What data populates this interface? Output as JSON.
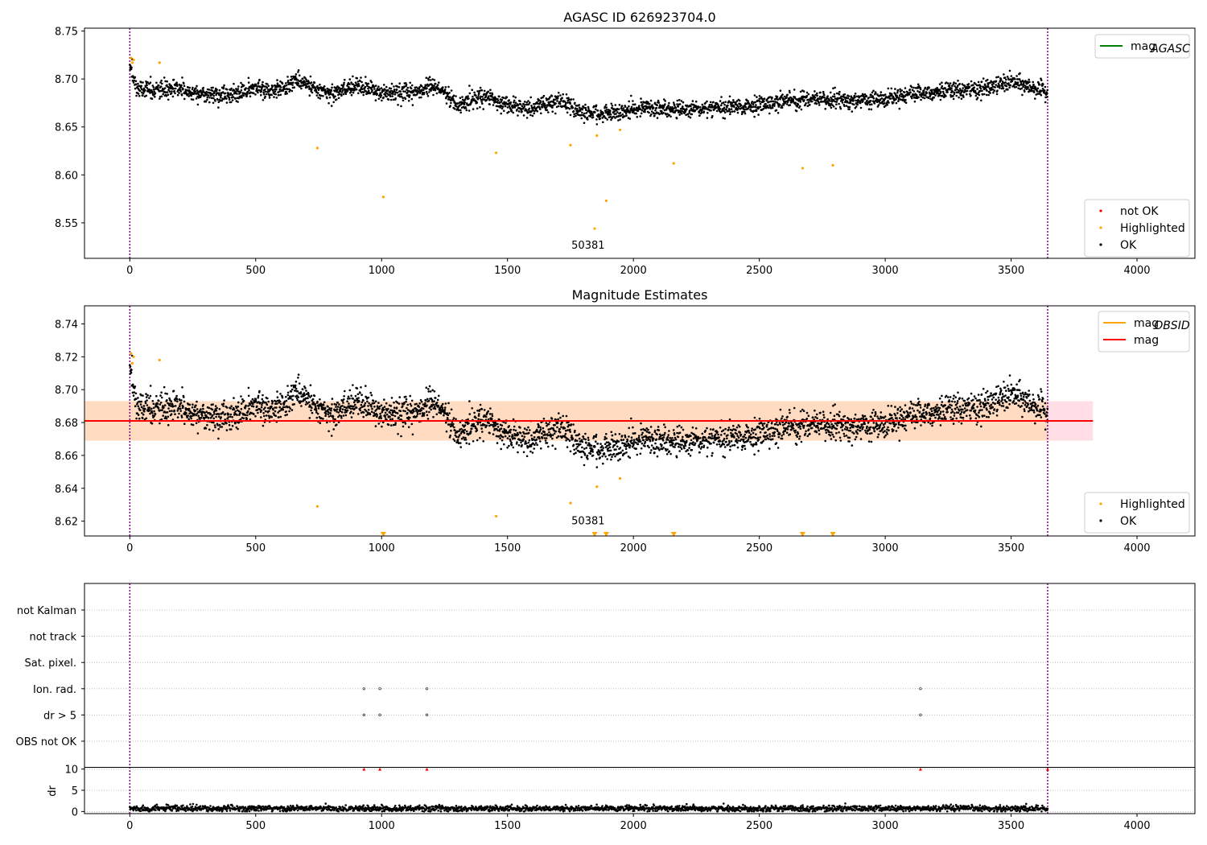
{
  "figure": {
    "colors": {
      "ok": "#000000",
      "highlighted": "#ffa500",
      "not_ok": "#ff0000",
      "agasc_line": "#008000",
      "mag_line": "#ff0000",
      "band": "#ffc0cb",
      "band_core": "#ffdab9",
      "obs_boundary": "#800080"
    }
  },
  "chart_data": [
    {
      "id": "top",
      "type": "scatter",
      "title": "AGASC ID 626923704.0",
      "xlabel": "",
      "ylabel": "",
      "xlim": [
        -180,
        4230
      ],
      "ylim": [
        8.513,
        8.753
      ],
      "xticks": [
        0,
        500,
        1000,
        1500,
        2000,
        2500,
        3000,
        3500,
        4000
      ],
      "yticks": [
        8.55,
        8.6,
        8.65,
        8.7,
        8.75
      ],
      "ytick_decimals": 2,
      "grid": false,
      "obs_boundaries_x": [
        0,
        3645
      ],
      "annotation": {
        "text": "50381",
        "x": 1820,
        "y": 8.523
      },
      "trend": {
        "description": "dense OK points",
        "x_end": 3645,
        "knots": [
          [
            0,
            8.712
          ],
          [
            30,
            8.69
          ],
          [
            100,
            8.688
          ],
          [
            200,
            8.689
          ],
          [
            300,
            8.684
          ],
          [
            400,
            8.683
          ],
          [
            500,
            8.69
          ],
          [
            600,
            8.688
          ],
          [
            650,
            8.699
          ],
          [
            700,
            8.695
          ],
          [
            800,
            8.684
          ],
          [
            900,
            8.694
          ],
          [
            1000,
            8.686
          ],
          [
            1100,
            8.684
          ],
          [
            1200,
            8.692
          ],
          [
            1250,
            8.686
          ],
          [
            1300,
            8.672
          ],
          [
            1400,
            8.683
          ],
          [
            1500,
            8.672
          ],
          [
            1600,
            8.67
          ],
          [
            1700,
            8.678
          ],
          [
            1800,
            8.665
          ],
          [
            1900,
            8.664
          ],
          [
            2000,
            8.669
          ],
          [
            2100,
            8.669
          ],
          [
            2200,
            8.668
          ],
          [
            2300,
            8.67
          ],
          [
            2400,
            8.671
          ],
          [
            2500,
            8.672
          ],
          [
            2600,
            8.677
          ],
          [
            2700,
            8.679
          ],
          [
            2800,
            8.679
          ],
          [
            2900,
            8.677
          ],
          [
            3000,
            8.681
          ],
          [
            3100,
            8.685
          ],
          [
            3200,
            8.687
          ],
          [
            3300,
            8.688
          ],
          [
            3400,
            8.69
          ],
          [
            3500,
            8.697
          ],
          [
            3600,
            8.69
          ],
          [
            3645,
            8.686
          ]
        ],
        "scatter_sd": 0.008
      },
      "series": [
        {
          "name": "Highlighted",
          "color": "#ffa500",
          "x": [
            5,
            10,
            15,
            118,
            745,
            1007,
            1455,
            1750,
            1855,
            1892,
            1947,
            2160,
            2672,
            2792
          ],
          "y": [
            8.722,
            8.717,
            8.72,
            8.717,
            8.628,
            8.577,
            8.623,
            8.631,
            8.641,
            8.573,
            8.647,
            8.612,
            8.607,
            8.61
          ]
        },
        {
          "name": "Highlighted",
          "color": "#ffa500",
          "x": [
            1846
          ],
          "y": [
            8.544
          ]
        }
      ],
      "legends": [
        {
          "position": "upper-right",
          "entries": [
            {
              "label": "mag",
              "sub": "AGASC",
              "kind": "line",
              "color": "#008000"
            }
          ]
        },
        {
          "position": "lower-right",
          "entries": [
            {
              "label": "not OK",
              "kind": "dot",
              "color": "#ff0000"
            },
            {
              "label": "Highlighted",
              "kind": "dot",
              "color": "#ffa500"
            },
            {
              "label": "OK",
              "kind": "dot",
              "color": "#000000"
            }
          ]
        }
      ]
    },
    {
      "id": "middle",
      "type": "scatter",
      "title": "Magnitude Estimates",
      "xlabel": "",
      "ylabel": "",
      "xlim": [
        -180,
        4230
      ],
      "ylim": [
        8.611,
        8.751
      ],
      "xticks": [
        0,
        500,
        1000,
        1500,
        2000,
        2500,
        3000,
        3500,
        4000
      ],
      "yticks": [
        8.62,
        8.64,
        8.66,
        8.68,
        8.7,
        8.72,
        8.74
      ],
      "ytick_decimals": 2,
      "grid": false,
      "obs_boundaries_x": [
        0,
        3645
      ],
      "annotation": {
        "text": "50381",
        "x": 1820,
        "y": 8.618
      },
      "mag_line": {
        "y": 8.681,
        "x_range": [
          -180,
          3825
        ]
      },
      "band_outer": {
        "y0": 8.669,
        "y1": 8.693,
        "x_range": [
          -180,
          3825
        ]
      },
      "band_inner": {
        "y0": 8.669,
        "y1": 8.693,
        "x_range": [
          -180,
          3645
        ]
      },
      "trend": {
        "description": "dense OK points",
        "x_end": 3645,
        "knots": [
          [
            0,
            8.712
          ],
          [
            30,
            8.69
          ],
          [
            100,
            8.688
          ],
          [
            200,
            8.689
          ],
          [
            300,
            8.684
          ],
          [
            400,
            8.683
          ],
          [
            500,
            8.69
          ],
          [
            600,
            8.688
          ],
          [
            650,
            8.699
          ],
          [
            700,
            8.695
          ],
          [
            800,
            8.684
          ],
          [
            900,
            8.694
          ],
          [
            1000,
            8.686
          ],
          [
            1100,
            8.684
          ],
          [
            1200,
            8.692
          ],
          [
            1250,
            8.686
          ],
          [
            1300,
            8.672
          ],
          [
            1400,
            8.683
          ],
          [
            1500,
            8.672
          ],
          [
            1600,
            8.67
          ],
          [
            1700,
            8.678
          ],
          [
            1800,
            8.665
          ],
          [
            1900,
            8.664
          ],
          [
            2000,
            8.669
          ],
          [
            2100,
            8.669
          ],
          [
            2200,
            8.668
          ],
          [
            2300,
            8.67
          ],
          [
            2400,
            8.671
          ],
          [
            2500,
            8.672
          ],
          [
            2600,
            8.677
          ],
          [
            2700,
            8.679
          ],
          [
            2800,
            8.679
          ],
          [
            2900,
            8.677
          ],
          [
            3000,
            8.681
          ],
          [
            3100,
            8.685
          ],
          [
            3200,
            8.687
          ],
          [
            3300,
            8.688
          ],
          [
            3400,
            8.69
          ],
          [
            3500,
            8.697
          ],
          [
            3600,
            8.69
          ],
          [
            3645,
            8.686
          ]
        ],
        "scatter_sd": 0.008
      },
      "series": [
        {
          "name": "Highlighted",
          "color": "#ffa500",
          "x": [
            5,
            10,
            15,
            118,
            745,
            1455,
            1750,
            1855,
            1947
          ],
          "y": [
            8.722,
            8.716,
            8.72,
            8.718,
            8.629,
            8.623,
            8.631,
            8.641,
            8.646
          ]
        },
        {
          "name": "Highlighted (below range)",
          "color": "#ffa500",
          "marker": "triangle-down",
          "x": [
            1007,
            1846,
            1892,
            2160,
            2672,
            2792
          ],
          "y": [
            8.612,
            8.612,
            8.612,
            8.612,
            8.612,
            8.612
          ]
        }
      ],
      "legends": [
        {
          "position": "upper-right",
          "entries": [
            {
              "label": "mag",
              "sub": "OBSID",
              "kind": "line",
              "color": "#ffa500"
            },
            {
              "label": "mag",
              "kind": "line",
              "color": "#ff0000"
            }
          ]
        },
        {
          "position": "lower-right",
          "entries": [
            {
              "label": "Highlighted",
              "kind": "dot",
              "color": "#ffa500"
            },
            {
              "label": "OK",
              "kind": "dot",
              "color": "#000000"
            }
          ]
        }
      ]
    },
    {
      "id": "flags",
      "type": "scatter",
      "title": "",
      "xlabel": "",
      "ylabel": "",
      "xlim": [
        -180,
        4230
      ],
      "categories": [
        "OBS not OK",
        "dr > 5",
        "Ion. rad.",
        "Sat. pixel.",
        "not track",
        "not Kalman"
      ],
      "grid": true,
      "obs_boundaries_x": [
        0,
        3645
      ],
      "flag_points": [
        {
          "category": "Ion. rad.",
          "x": [
            930,
            993,
            1180,
            3140
          ]
        },
        {
          "category": "dr > 5",
          "x": [
            930,
            993,
            1180,
            3140
          ]
        }
      ]
    },
    {
      "id": "dr",
      "type": "scatter",
      "title": "",
      "xlabel": "",
      "ylabel": "dr",
      "xlim": [
        -180,
        4230
      ],
      "ylim": [
        -0.5,
        10.5
      ],
      "xticks": [
        0,
        500,
        1000,
        1500,
        2000,
        2500,
        3000,
        3500,
        4000
      ],
      "yticks": [
        0,
        5,
        10
      ],
      "ytick_decimals": 0,
      "grid": true,
      "obs_boundaries_x": [
        0,
        3645
      ],
      "dr_points": {
        "x_end": 3645,
        "mean": 0.7,
        "sd": 0.35
      },
      "clipped": {
        "color": "#ff0000",
        "marker": "triangle-up",
        "x": [
          930,
          993,
          1180,
          3140,
          3645
        ],
        "y": [
          10,
          10,
          10,
          10,
          10
        ]
      }
    }
  ]
}
